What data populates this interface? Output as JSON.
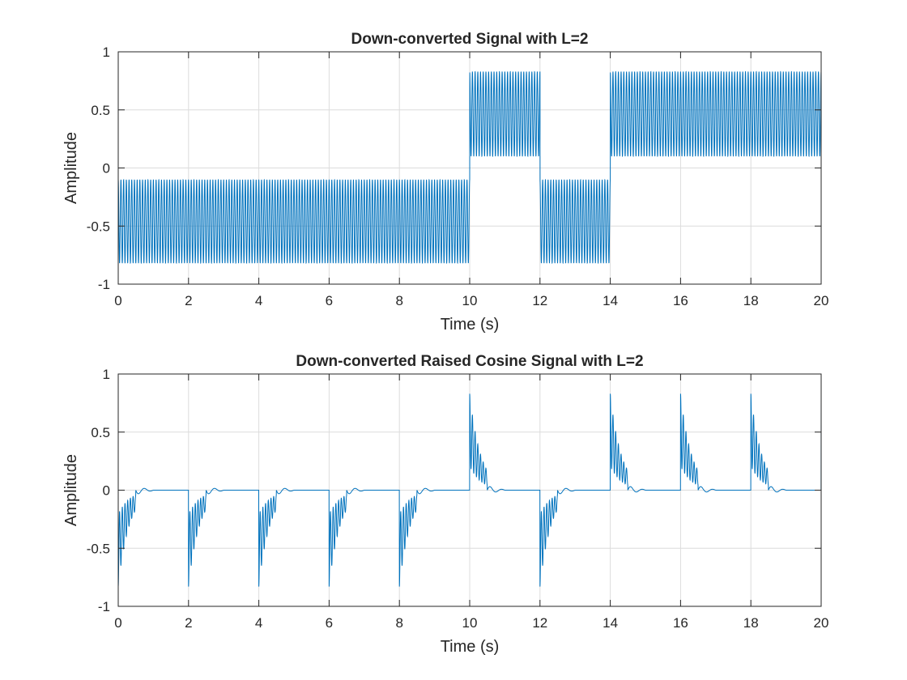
{
  "figure": {
    "background": "#ffffff",
    "series_color": "#0072BD"
  },
  "chart_data": [
    {
      "type": "line",
      "title": "Down-converted Signal with L=2",
      "xlabel": "Time (s)",
      "ylabel": "Amplitude",
      "xlim": [
        0,
        20
      ],
      "ylim": [
        -1,
        1
      ],
      "xticks": [
        0,
        2,
        4,
        6,
        8,
        10,
        12,
        14,
        16,
        18,
        20
      ],
      "xtick_labels": [
        "0",
        "2",
        "4",
        "6",
        "8",
        "10",
        "12",
        "14",
        "16",
        "18",
        "20"
      ],
      "yticks": [
        -1,
        -0.5,
        0,
        0.5,
        1
      ],
      "ytick_labels": [
        "-1",
        "-0.5",
        "0",
        "0.5",
        "1"
      ],
      "grid": true,
      "series": [
        {
          "name": "down-converted",
          "kind": "oscillating-envelope",
          "segments": [
            {
              "t0": 0,
              "t1": 10,
              "min": -0.82,
              "max": -0.1
            },
            {
              "t0": 10,
              "t1": 12,
              "min": 0.1,
              "max": 0.83
            },
            {
              "t0": 12,
              "t1": 14,
              "min": -0.82,
              "max": -0.1
            },
            {
              "t0": 14,
              "t1": 20,
              "min": 0.1,
              "max": 0.83
            }
          ],
          "cycles_per_second": 13
        }
      ]
    },
    {
      "type": "line",
      "title": "Down-converted Raised Cosine Signal with L=2",
      "xlabel": "Time (s)",
      "ylabel": "Amplitude",
      "xlim": [
        0,
        20
      ],
      "ylim": [
        -1,
        1
      ],
      "xticks": [
        0,
        2,
        4,
        6,
        8,
        10,
        12,
        14,
        16,
        18,
        20
      ],
      "xtick_labels": [
        "0",
        "2",
        "4",
        "6",
        "8",
        "10",
        "12",
        "14",
        "16",
        "18",
        "20"
      ],
      "yticks": [
        -1,
        -0.5,
        0,
        0.5,
        1
      ],
      "ytick_labels": [
        "-1",
        "-0.5",
        "0",
        "0.5",
        "1"
      ],
      "grid": true,
      "series": [
        {
          "name": "raised-cosine",
          "kind": "pulses",
          "symbol_period": 2,
          "pulse_duration": 1,
          "symbols": [
            -1,
            -1,
            -1,
            -1,
            -1,
            1,
            -1,
            1,
            1,
            1
          ],
          "peak_amplitude": 0.83,
          "cycles_per_second": 13
        }
      ]
    }
  ]
}
